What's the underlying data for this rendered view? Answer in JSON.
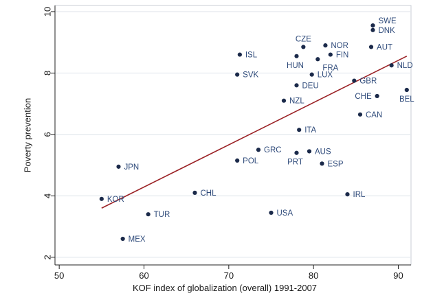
{
  "chart_data": {
    "type": "scatter",
    "title": "",
    "xlabel": "KOF index of globalization (overall) 1991-2007",
    "ylabel": "Poverty prevention",
    "xlim": [
      49.5,
      91.5
    ],
    "ylim": [
      1.75,
      10.2
    ],
    "xticks": [
      "50",
      "60",
      "70",
      "80",
      "90"
    ],
    "xtick_values": [
      50,
      60,
      70,
      80,
      90
    ],
    "yticks": [
      "2",
      "4",
      "6",
      "8",
      "10"
    ],
    "ytick_values": [
      2,
      4,
      6,
      8,
      10
    ],
    "grid": "horizontal",
    "legend": "none",
    "colors": {
      "point": "#1b2a4a",
      "label": "#2e4a7a",
      "fit_line": "#9b2226",
      "grid": "#e3e8ee",
      "axis": "#222222",
      "panel_border": "#c8cdd4"
    },
    "fit_line": {
      "x": [
        55.0,
        91.0
      ],
      "y": [
        3.6,
        8.55
      ]
    },
    "points": [
      {
        "label": "SWE",
        "x": 87.0,
        "y": 9.55,
        "pos": "right-up"
      },
      {
        "label": "DNK",
        "x": 87.0,
        "y": 9.4,
        "pos": "right"
      },
      {
        "label": "AUT",
        "x": 86.8,
        "y": 8.85,
        "pos": "right"
      },
      {
        "label": "NLD",
        "x": 89.2,
        "y": 8.25,
        "pos": "right"
      },
      {
        "label": "BEL",
        "x": 91.0,
        "y": 7.45,
        "pos": "below-left"
      },
      {
        "label": "GBR",
        "x": 84.8,
        "y": 7.75,
        "pos": "right"
      },
      {
        "label": "CHE",
        "x": 87.5,
        "y": 7.25,
        "pos": "left"
      },
      {
        "label": "CAN",
        "x": 85.5,
        "y": 6.65,
        "pos": "right"
      },
      {
        "label": "CZE",
        "x": 78.8,
        "y": 8.85,
        "pos": "above"
      },
      {
        "label": "NOR",
        "x": 81.4,
        "y": 8.9,
        "pos": "right"
      },
      {
        "label": "FIN",
        "x": 82.0,
        "y": 8.6,
        "pos": "right"
      },
      {
        "label": "HUN",
        "x": 78.0,
        "y": 8.55,
        "pos": "below"
      },
      {
        "label": "FRA",
        "x": 80.5,
        "y": 8.45,
        "pos": "below-right"
      },
      {
        "label": "LUX",
        "x": 79.8,
        "y": 7.95,
        "pos": "right"
      },
      {
        "label": "DEU",
        "x": 78.0,
        "y": 7.6,
        "pos": "right"
      },
      {
        "label": "NZL",
        "x": 76.5,
        "y": 7.1,
        "pos": "right"
      },
      {
        "label": "ISL",
        "x": 71.3,
        "y": 8.6,
        "pos": "right"
      },
      {
        "label": "SVK",
        "x": 71.0,
        "y": 7.95,
        "pos": "right"
      },
      {
        "label": "ITA",
        "x": 78.3,
        "y": 6.15,
        "pos": "right"
      },
      {
        "label": "GRC",
        "x": 73.5,
        "y": 5.5,
        "pos": "right"
      },
      {
        "label": "POL",
        "x": 71.0,
        "y": 5.15,
        "pos": "right"
      },
      {
        "label": "PRT",
        "x": 78.0,
        "y": 5.4,
        "pos": "below"
      },
      {
        "label": "AUS",
        "x": 79.5,
        "y": 5.45,
        "pos": "right"
      },
      {
        "label": "ESP",
        "x": 81.0,
        "y": 5.05,
        "pos": "right"
      },
      {
        "label": "IRL",
        "x": 84.0,
        "y": 4.05,
        "pos": "right"
      },
      {
        "label": "USA",
        "x": 75.0,
        "y": 3.45,
        "pos": "right"
      },
      {
        "label": "CHL",
        "x": 66.0,
        "y": 4.1,
        "pos": "right"
      },
      {
        "label": "JPN",
        "x": 57.0,
        "y": 4.95,
        "pos": "right"
      },
      {
        "label": "KOR",
        "x": 55.0,
        "y": 3.9,
        "pos": "right"
      },
      {
        "label": "TUR",
        "x": 60.5,
        "y": 3.4,
        "pos": "right"
      },
      {
        "label": "MEX",
        "x": 57.5,
        "y": 2.6,
        "pos": "right"
      }
    ]
  }
}
